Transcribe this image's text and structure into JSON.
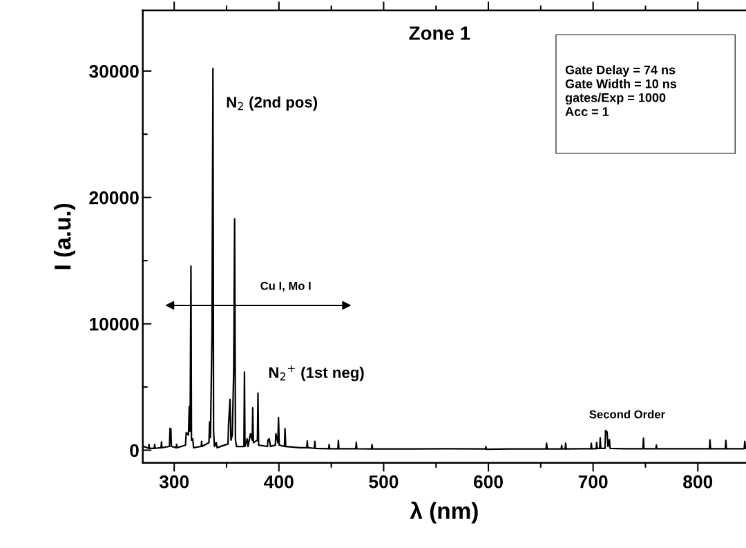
{
  "chart_data": {
    "type": "line",
    "title": "Zone 1",
    "xlabel": "λ (nm)",
    "ylabel": "I (a.u.)",
    "annotations": [
      "N$_{2}$ (2nd pos)",
      "Cu I, Mo I",
      "N$_{2}$$^{+}$ (1st neg)",
      "Second Order",
      "Gate Delay = 74 ns\nGate Width = 10 ns\ngates/Exp = 1000\nAcc = 1"
    ],
    "x": [
      271,
      275.6,
      276,
      276.4,
      280.9,
      281.4,
      281.8,
      287.4,
      287.9,
      288.3,
      295.5,
      296.0,
      296.8,
      297.3,
      301.9,
      302.3,
      302.7,
      310.8,
      311.5,
      313.6,
      314.4,
      315.2,
      316.0,
      316.5,
      317.7,
      318.5,
      325.8,
      326.2,
      326.6,
      333.2,
      333.8,
      334.6,
      336.1,
      337.0,
      337.6,
      338.4,
      340.1,
      341,
      351.4,
      351.9,
      353.3,
      354.2,
      355.5,
      356.9,
      357.7,
      358.5,
      359.5,
      366.6,
      367.1,
      367.6,
      369.7,
      370.5,
      372.8,
      374.5,
      375.0,
      375.6,
      379.5,
      380.0,
      380.6,
      389.1,
      389.5,
      390.8,
      392,
      396.6,
      397.1,
      399,
      399.6,
      400.3,
      405.3,
      405.8,
      406.5,
      420,
      426.6,
      427.1,
      427.6,
      433.8,
      434.3,
      434.8,
      447.5,
      448.0,
      448.5,
      456.3,
      456.8,
      457.3,
      473.4,
      473.9,
      474.4,
      488.4,
      488.9,
      489.4,
      530,
      560,
      597.1,
      597.6,
      598.1,
      620,
      640,
      655.1,
      655.6,
      656.1,
      669.5,
      670,
      670.5,
      673.3,
      673.8,
      674.3,
      690,
      697.8,
      698.3,
      698.8,
      702.9,
      703.4,
      703.9,
      706.3,
      706.8,
      707.3,
      711.4,
      711.9,
      713.4,
      714.2,
      715.6,
      716.2,
      730,
      747.6,
      748.1,
      748.6,
      759.9,
      760.4,
      760.9,
      790,
      811.1,
      811.6,
      812.1,
      826.3,
      826.8,
      827.3,
      844.3,
      844.8,
      845.5
    ],
    "values": [
      300,
      150,
      460,
      150,
      150,
      460,
      150,
      200,
      660,
      200,
      300,
      1730,
      1700,
      300,
      200,
      460,
      200,
      400,
      1400,
      1200,
      3470,
      1500,
      14560,
      800,
      900,
      200,
      300,
      700,
      300,
      600,
      2230,
      1000,
      9100,
      30200,
      1500,
      300,
      600,
      200,
      500,
      2000,
      4030,
      800,
      1200,
      6600,
      18300,
      800,
      300,
      300,
      6180,
      300,
      900,
      300,
      1300,
      800,
      3360,
      600,
      800,
      4520,
      400,
      300,
      800,
      900,
      300,
      400,
      1300,
      600,
      2590,
      400,
      300,
      1710,
      300,
      200,
      200,
      730,
      200,
      150,
      700,
      150,
      120,
      450,
      120,
      120,
      770,
      120,
      120,
      620,
      120,
      100,
      450,
      100,
      100,
      120,
      100,
      280,
      80,
      100,
      100,
      100,
      560,
      100,
      100,
      380,
      100,
      100,
      560,
      100,
      120,
      120,
      560,
      120,
      120,
      610,
      150,
      150,
      980,
      150,
      150,
      1570,
      1440,
      300,
      840,
      150,
      120,
      120,
      950,
      120,
      120,
      400,
      120,
      120,
      120,
      820,
      120,
      120,
      770,
      120,
      120,
      700,
      150
    ],
    "color": "#000000",
    "xlim": [
      270,
      846
    ],
    "ylim": [
      -1000,
      34800
    ],
    "xticks": [
      300,
      {
        "value": 350,
        "label": null
      },
      400,
      {
        "value": 450,
        "label": null
      },
      500,
      {
        "value": 550,
        "label": null
      },
      600,
      {
        "value": 650,
        "label": null
      },
      700,
      {
        "value": 750,
        "label": null
      },
      800
    ],
    "yticks": [
      0,
      {
        "value": 5000,
        "label": null
      },
      10000,
      {
        "value": 15000,
        "label": null
      },
      20000,
      {
        "value": 25000,
        "label": null
      },
      30000
    ],
    "grid": false,
    "marker": "none",
    "line_style": "solid"
  }
}
